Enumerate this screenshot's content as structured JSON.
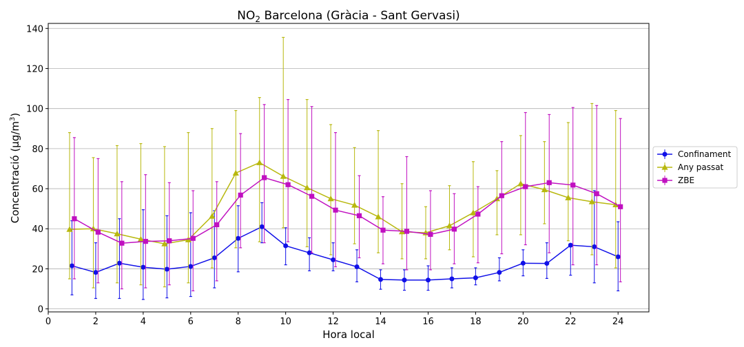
{
  "chart_data": {
    "type": "line",
    "title": {
      "pre": "NO",
      "sub": "2",
      "post": " Barcelona (Gràcia - Sant Gervasi)"
    },
    "xlabel": "Hora local",
    "ylabel": {
      "pre": "Concentració (µg/m",
      "sup": "3",
      "post": ")"
    },
    "xlim": [
      0,
      25.3
    ],
    "ylim": [
      -1.5,
      142.5
    ],
    "xticks": [
      0,
      2,
      4,
      6,
      8,
      10,
      12,
      14,
      16,
      18,
      20,
      22,
      24
    ],
    "yticks": [
      0,
      20,
      40,
      60,
      80,
      100,
      120,
      140
    ],
    "grid": "horizontal",
    "legend_position": "right",
    "series": [
      {
        "name": "Confinament",
        "color": "#1010e8",
        "marker": "circle",
        "offset": 0,
        "x": [
          1,
          2,
          3,
          4,
          5,
          6,
          7,
          8,
          9,
          10,
          11,
          12,
          13,
          14,
          15,
          16,
          17,
          18,
          19,
          20,
          21,
          22,
          23,
          24
        ],
        "y": [
          21.5,
          18.2,
          22.8,
          20.8,
          19.8,
          21.2,
          25.5,
          35.2,
          41.0,
          31.5,
          28.0,
          24.5,
          21.0,
          14.7,
          14.4,
          14.4,
          15.0,
          15.5,
          18.2,
          22.8,
          22.7,
          31.8,
          31.0,
          26.0
        ],
        "err_low": [
          7.0,
          5.2,
          5.2,
          4.7,
          5.5,
          6.2,
          10.5,
          18.5,
          33.0,
          22.0,
          19.0,
          19.0,
          13.5,
          9.8,
          9.3,
          9.3,
          10.5,
          12.0,
          14.0,
          16.5,
          15.2,
          16.8,
          13.0,
          9.0
        ],
        "err_high": [
          44.0,
          33.0,
          45.0,
          49.5,
          46.5,
          48.0,
          49.0,
          51.5,
          53.0,
          40.5,
          35.5,
          33.0,
          29.5,
          19.5,
          19.5,
          21.5,
          20.5,
          20.5,
          25.5,
          29.5,
          33.0,
          32.5,
          59.0,
          43.5
        ]
      },
      {
        "name": "Any passat",
        "color": "#b8b80e",
        "marker": "triangle",
        "offset": -0.1,
        "x": [
          1,
          2,
          3,
          4,
          5,
          6,
          7,
          8,
          9,
          10,
          11,
          12,
          13,
          14,
          15,
          16,
          17,
          18,
          19,
          20,
          21,
          22,
          23,
          24
        ],
        "y": [
          39.7,
          40.0,
          37.5,
          34.8,
          32.5,
          34.5,
          46.3,
          67.8,
          73.0,
          66.2,
          60.5,
          55.0,
          51.8,
          46.0,
          38.5,
          38.0,
          41.5,
          48.0,
          55.0,
          62.5,
          59.5,
          55.5,
          53.5,
          52.0
        ],
        "err_low": [
          15.0,
          10.5,
          13.0,
          12.0,
          11.0,
          13.0,
          20.5,
          30.5,
          33.5,
          40.5,
          31.0,
          27.0,
          32.5,
          28.0,
          25.0,
          25.0,
          29.5,
          26.0,
          37.0,
          37.0,
          42.5,
          34.0,
          27.0,
          20.5
        ],
        "err_high": [
          88.0,
          75.5,
          81.5,
          82.5,
          81.0,
          88.0,
          90.0,
          99.0,
          105.5,
          135.5,
          104.5,
          92.0,
          80.5,
          89.0,
          62.5,
          51.0,
          61.5,
          73.5,
          69.0,
          86.5,
          83.5,
          93.0,
          102.5,
          99.0
        ]
      },
      {
        "name": "ZBE",
        "color": "#c010c0",
        "marker": "square",
        "offset": 0.1,
        "x": [
          1,
          2,
          3,
          4,
          5,
          6,
          7,
          8,
          9,
          10,
          11,
          12,
          13,
          14,
          15,
          16,
          17,
          18,
          19,
          20,
          21,
          22,
          23,
          24
        ],
        "y": [
          45.0,
          38.3,
          32.8,
          33.7,
          34.0,
          35.2,
          42.0,
          56.8,
          65.5,
          62.0,
          56.2,
          49.3,
          46.5,
          39.3,
          38.7,
          37.2,
          39.8,
          47.3,
          56.5,
          61.0,
          63.0,
          61.8,
          57.5,
          51.0
        ],
        "err_low": [
          15.0,
          13.0,
          10.0,
          10.5,
          12.0,
          9.0,
          14.0,
          30.5,
          33.0,
          33.5,
          28.0,
          21.0,
          25.5,
          22.5,
          19.5,
          19.5,
          22.5,
          23.0,
          27.5,
          32.0,
          28.0,
          22.0,
          22.0,
          13.5
        ],
        "err_high": [
          85.5,
          75.0,
          63.5,
          67.0,
          63.0,
          59.0,
          63.5,
          87.5,
          102.0,
          104.5,
          101.0,
          88.0,
          66.5,
          56.0,
          76.0,
          59.0,
          57.5,
          61.0,
          83.5,
          98.0,
          97.0,
          100.5,
          101.5,
          95.0
        ]
      }
    ]
  }
}
